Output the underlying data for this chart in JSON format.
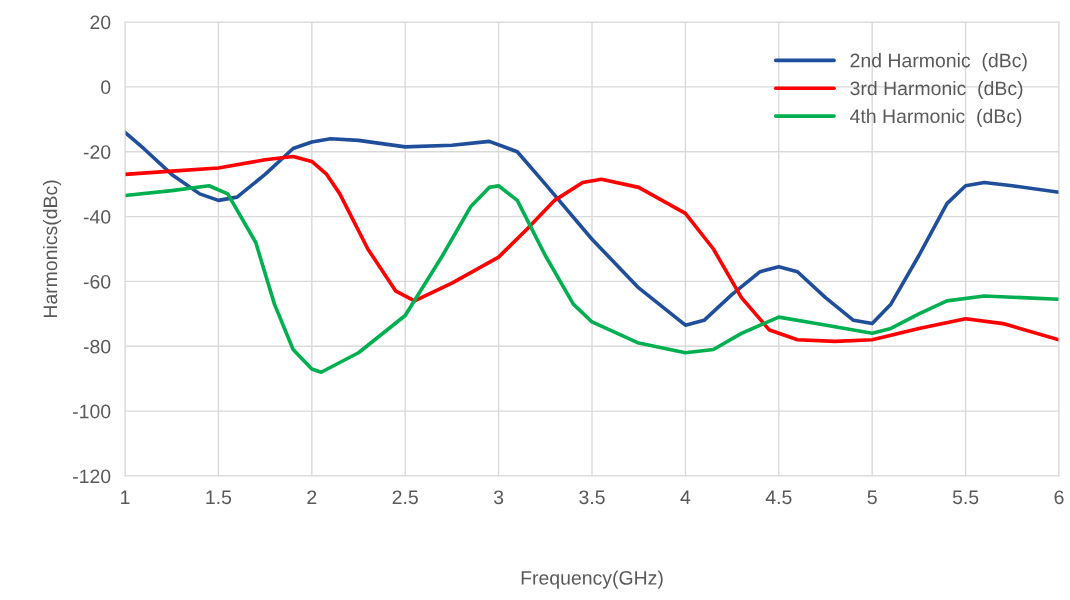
{
  "chart_data": {
    "type": "line",
    "xlabel": "Frequency(GHz)",
    "ylabel": "Harmonics(dBc)",
    "series": [
      {
        "name": "2nd Harmonic  (dBc)",
        "color": "#1f4e9a",
        "x": [
          1,
          1.1,
          1.25,
          1.4,
          1.5,
          1.6,
          1.75,
          1.9,
          2,
          2.1,
          2.25,
          2.5,
          2.75,
          2.95,
          3.1,
          3.25,
          3.5,
          3.75,
          4,
          4.1,
          4.25,
          4.4,
          4.5,
          4.6,
          4.75,
          4.9,
          5,
          5.1,
          5.25,
          5.4,
          5.5,
          5.6,
          5.75,
          6
        ],
        "values": [
          -14,
          -19,
          -27,
          -33,
          -35,
          -34,
          -27,
          -19,
          -17,
          -16,
          -16.5,
          -18.5,
          -18,
          -16.8,
          -20,
          -30,
          -47,
          -62,
          -73.5,
          -72,
          -64,
          -57,
          -55.5,
          -57,
          -65,
          -72,
          -73,
          -67,
          -52,
          -36,
          -30.5,
          -29.5,
          -30.5,
          -32.5
        ]
      },
      {
        "name": "3rd Harmonic  (dBc)",
        "color": "#ff0000",
        "x": [
          1,
          1.25,
          1.5,
          1.75,
          1.9,
          2,
          2.08,
          2.15,
          2.3,
          2.45,
          2.55,
          2.75,
          3,
          3.15,
          3.3,
          3.45,
          3.55,
          3.75,
          4,
          4.15,
          4.3,
          4.45,
          4.6,
          4.8,
          5,
          5.25,
          5.5,
          5.7,
          6
        ],
        "values": [
          -27,
          -26,
          -25,
          -22.5,
          -21.5,
          -23,
          -27,
          -33,
          -50,
          -63,
          -66,
          -60.5,
          -52.5,
          -44,
          -35,
          -29.5,
          -28.5,
          -31,
          -39,
          -50,
          -65,
          -75,
          -78,
          -78.5,
          -78,
          -74.5,
          -71.5,
          -73,
          -78
        ]
      },
      {
        "name": "4th Harmonic  (dBc)",
        "color": "#00b050",
        "x": [
          1,
          1.25,
          1.45,
          1.55,
          1.7,
          1.8,
          1.9,
          2,
          2.05,
          2.25,
          2.5,
          2.7,
          2.85,
          2.95,
          3,
          3.1,
          3.25,
          3.4,
          3.5,
          3.75,
          4,
          4.15,
          4.3,
          4.5,
          4.7,
          5,
          5.1,
          5.25,
          5.4,
          5.6,
          5.8,
          6
        ],
        "values": [
          -33.5,
          -32,
          -30.5,
          -33,
          -48,
          -67,
          -81,
          -87,
          -88,
          -82,
          -70.5,
          -52,
          -37,
          -31,
          -30.5,
          -35,
          -52,
          -67,
          -72.5,
          -79,
          -82,
          -81,
          -76,
          -71,
          -73,
          -76,
          -74.5,
          -70,
          -66,
          -64.5,
          -65,
          -65.5
        ]
      }
    ],
    "xlim": [
      1,
      6
    ],
    "xticks": [
      1,
      1.5,
      2,
      2.5,
      3,
      3.5,
      4,
      4.5,
      5,
      5.5,
      6
    ],
    "ylim": [
      -120,
      20
    ],
    "yticks": [
      -120,
      -100,
      -80,
      -60,
      -40,
      -20,
      0,
      20
    ],
    "grid": true,
    "legend": "top right",
    "line_style": "solid"
  }
}
